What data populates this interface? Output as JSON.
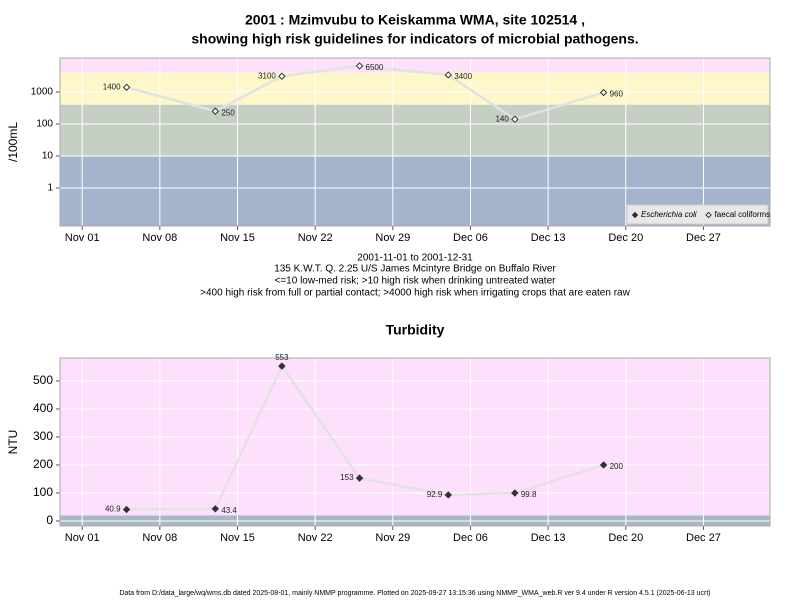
{
  "chart_data": [
    {
      "type": "line",
      "title": [
        "2001 : Mzimvubu to Keiskamma WMA, site 102514 ,",
        "showing high risk guidelines for indicators of microbial pathogens."
      ],
      "y_label": "/100mL",
      "log_y": true,
      "grid": true,
      "legend": "bottom-right",
      "notes": [
        "2001-11-01 to 2001-12-31",
        "135 K.W.T. Q. 2.25 U/S James Mcintyre Bridge on Buffalo River",
        "<=10 low-med risk; >10 high risk when drinking untreated water",
        ">400 high risk from full or partial contact; >4000 high risk when irrigating crops that are eaten raw"
      ],
      "x": [
        "2001-11-05",
        "2001-11-13",
        "2001-11-19",
        "2001-11-26",
        "2001-12-04",
        "2001-12-10",
        "2001-12-18"
      ],
      "xlim": [
        "2001-10-30",
        "2002-01-02"
      ],
      "xticks": [
        {
          "value": "2001-11-01",
          "label": "Nov 01"
        },
        {
          "value": "2001-11-08",
          "label": "Nov 08"
        },
        {
          "value": "2001-11-15",
          "label": "Nov 15"
        },
        {
          "value": "2001-11-22",
          "label": "Nov 22"
        },
        {
          "value": "2001-11-29",
          "label": "Nov 29"
        },
        {
          "value": "2001-12-06",
          "label": "Dec 06"
        },
        {
          "value": "2001-12-13",
          "label": "Dec 13"
        },
        {
          "value": "2001-12-20",
          "label": "Dec 20"
        },
        {
          "value": "2001-12-27",
          "label": "Dec 27"
        }
      ],
      "ylim": [
        0.065,
        11500
      ],
      "yticks": [
        1,
        10,
        100,
        1000
      ],
      "thresholds": [
        10,
        400,
        4000
      ],
      "band_colors": [
        "#a3b4cc",
        "#c5cfc3",
        "#fdf7c9",
        "#fde0fb"
      ],
      "line_color": "#e2e2e2",
      "series": [
        {
          "name": "Escherichia coli",
          "marker": "filled",
          "color": "#333333",
          "values": [
            null,
            null,
            null,
            null,
            null,
            null,
            null
          ]
        },
        {
          "name": "faecal coliforms",
          "marker": "hollow",
          "color": "#333333",
          "values": [
            1400,
            250,
            3100,
            6500,
            3400,
            140,
            960
          ]
        }
      ]
    },
    {
      "type": "line",
      "title": "Turbidity",
      "y_label": "NTU",
      "log_y": false,
      "grid": true,
      "x": [
        "2001-11-05",
        "2001-11-13",
        "2001-11-19",
        "2001-11-26",
        "2001-12-04",
        "2001-12-10",
        "2001-12-18"
      ],
      "xlim": [
        "2001-10-30",
        "2002-01-02"
      ],
      "xticks": [
        {
          "value": "2001-11-01",
          "label": "Nov 01"
        },
        {
          "value": "2001-11-08",
          "label": "Nov 08"
        },
        {
          "value": "2001-11-15",
          "label": "Nov 15"
        },
        {
          "value": "2001-11-22",
          "label": "Nov 22"
        },
        {
          "value": "2001-11-29",
          "label": "Nov 29"
        },
        {
          "value": "2001-12-06",
          "label": "Dec 06"
        },
        {
          "value": "2001-12-13",
          "label": "Dec 13"
        },
        {
          "value": "2001-12-20",
          "label": "Dec 20"
        },
        {
          "value": "2001-12-27",
          "label": "Dec 27"
        }
      ],
      "ylim": [
        -18,
        582
      ],
      "yticks": [
        0,
        100,
        200,
        300,
        400,
        500
      ],
      "thresholds": [
        20
      ],
      "band_colors": [
        "#a9b8c6",
        "#fde0fb"
      ],
      "line_color": "#e2e2e2",
      "series": [
        {
          "marker": "filled",
          "color": "#333333",
          "values": [
            40.9,
            43.4,
            553,
            153,
            92.9,
            99.8,
            200
          ]
        }
      ]
    }
  ],
  "footer": "Data from D:/data_large/wq/wms.db dated 2025-08-01, mainly NMMP programme. Plotted on 2025-09-27 13:15:36 using NMMP_WMA_web.R ver 9.4 under R version 4.5.1 (2025-06-13 ucrt)"
}
